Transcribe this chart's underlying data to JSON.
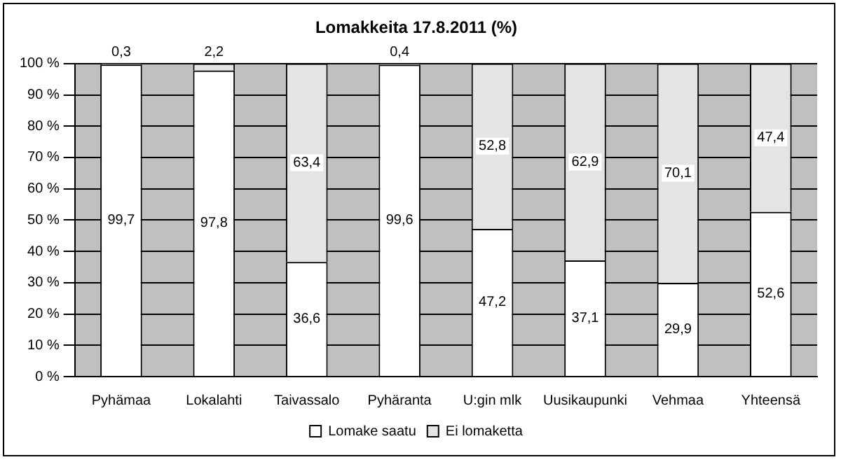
{
  "chart_data": {
    "type": "bar",
    "title": "Lomakkeita 17.8.2011 (%)",
    "stacked": true,
    "categories": [
      "Pyhämaa",
      "Lokalahti",
      "Taivassalo",
      "Pyhäranta",
      "U:gin mlk",
      "Uusikaupunki",
      "Vehmaa",
      "Yhteensä"
    ],
    "series": [
      {
        "name": "Lomake saatu",
        "color": "#ffffff",
        "values": [
          99.7,
          97.8,
          36.6,
          99.6,
          47.2,
          37.1,
          29.9,
          52.6
        ],
        "value_labels": [
          "99,7",
          "97,8",
          "36,6",
          "99,6",
          "47,2",
          "37,1",
          "29,9",
          "52,6"
        ]
      },
      {
        "name": "Ei lomaketta",
        "color": "#e4e4e4",
        "values": [
          0.3,
          2.2,
          63.4,
          0.4,
          52.8,
          62.9,
          70.1,
          47.4
        ],
        "value_labels": [
          "0,3",
          "2,2",
          "63,4",
          "0,4",
          "52,8",
          "62,9",
          "70,1",
          "47,4"
        ]
      }
    ],
    "ylim": [
      0,
      100
    ],
    "yticks": [
      {
        "value": 0,
        "label": "0 %"
      },
      {
        "value": 10,
        "label": "10 %"
      },
      {
        "value": 20,
        "label": "20 %"
      },
      {
        "value": 30,
        "label": "30 %"
      },
      {
        "value": 40,
        "label": "40 %"
      },
      {
        "value": 50,
        "label": "50 %"
      },
      {
        "value": 60,
        "label": "60 %"
      },
      {
        "value": 70,
        "label": "70 %"
      },
      {
        "value": 80,
        "label": "80 %"
      },
      {
        "value": 90,
        "label": "90 %"
      },
      {
        "value": 100,
        "label": "100 %"
      }
    ],
    "grid": "y",
    "legend": "bottom"
  }
}
